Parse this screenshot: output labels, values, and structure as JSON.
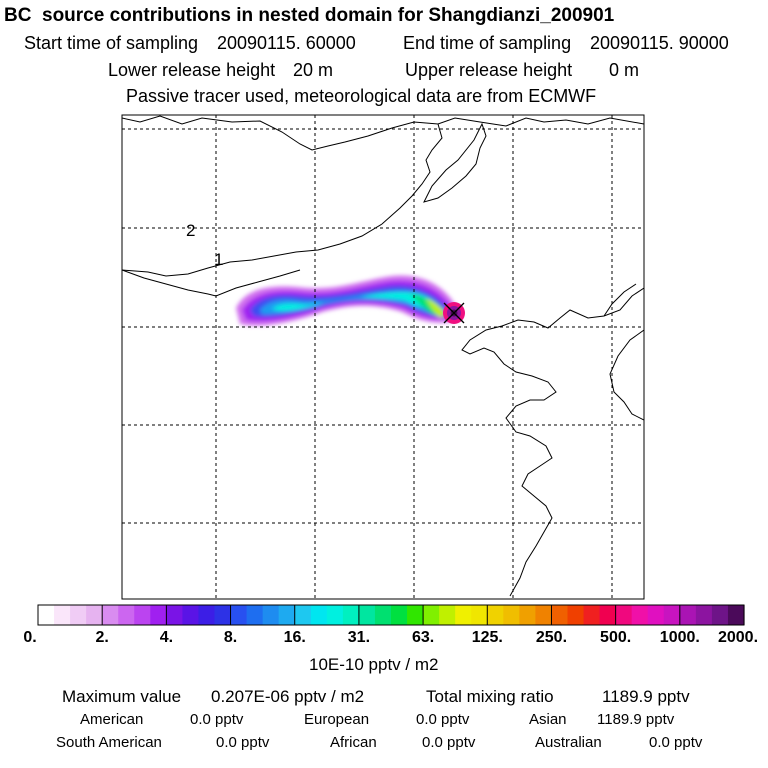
{
  "header": {
    "title": "BC  source contributions in nested domain for Shangdianzi_200901",
    "start_label": "Start time of sampling",
    "start_value": "20090115. 60000",
    "end_label": "End time of sampling",
    "end_value": "20090115. 90000",
    "lower_label": "Lower release height",
    "lower_value": "20 m",
    "upper_label": "Upper release height",
    "upper_value": "0 m",
    "note": "Passive tracer used, meteorological data are from ECMWF"
  },
  "map": {
    "labels": [
      "2",
      "1"
    ]
  },
  "colorbar": {
    "ticks": [
      "0.",
      "2.",
      "4.",
      "8.",
      "16.",
      "31.",
      "63.",
      "125.",
      "250.",
      "500.",
      "1000.",
      "2000."
    ],
    "colors": [
      "#ffffff",
      "#fae6fa",
      "#f0ccf5",
      "#e6b3f0",
      "#d98cf0",
      "#cc66f0",
      "#bb44f0",
      "#a020f0",
      "#7a14e6",
      "#5a14e6",
      "#3c1ee6",
      "#2d32e6",
      "#2850f0",
      "#1e6ef0",
      "#1e8cf0",
      "#1eaaf0",
      "#1ec8f0",
      "#00e6f0",
      "#00f0e0",
      "#00f0c0",
      "#00e6a0",
      "#00e070",
      "#00e040",
      "#30e600",
      "#80f000",
      "#c0f000",
      "#f0f000",
      "#f0e600",
      "#f0d200",
      "#f0be00",
      "#f0a000",
      "#f08200",
      "#f06000",
      "#f04000",
      "#f02020",
      "#f00050",
      "#f0087e",
      "#f010a8",
      "#e010c0",
      "#c814c0",
      "#aa14b4",
      "#8c14a0",
      "#6e1488",
      "#4b0a5a"
    ],
    "unit": "10E-10 pptv / m2"
  },
  "summary": {
    "max_label": "Maximum value",
    "max_value": "0.207E-06 pptv / m2",
    "total_label": "Total mixing ratio",
    "total_value": "1189.9 pptv",
    "regions": [
      {
        "name": "American",
        "value": "0.0 pptv"
      },
      {
        "name": "European",
        "value": "0.0 pptv"
      },
      {
        "name": "Asian",
        "value": "1189.9 pptv"
      },
      {
        "name": "South American",
        "value": "0.0 pptv"
      },
      {
        "name": "African",
        "value": "0.0 pptv"
      },
      {
        "name": "Australian",
        "value": "0.0 pptv"
      }
    ]
  },
  "chart_data": {
    "type": "heatmap",
    "title": "BC  source contributions in nested domain for Shangdianzi_200901",
    "colorbar_ticks": [
      0,
      2,
      4,
      8,
      16,
      31,
      63,
      125,
      250,
      500,
      1000,
      2000
    ],
    "unit": "10E-10 pptv / m2",
    "max_value": "0.207E-06 pptv / m2",
    "total_mixing_ratio": "1189.9 pptv"
  }
}
